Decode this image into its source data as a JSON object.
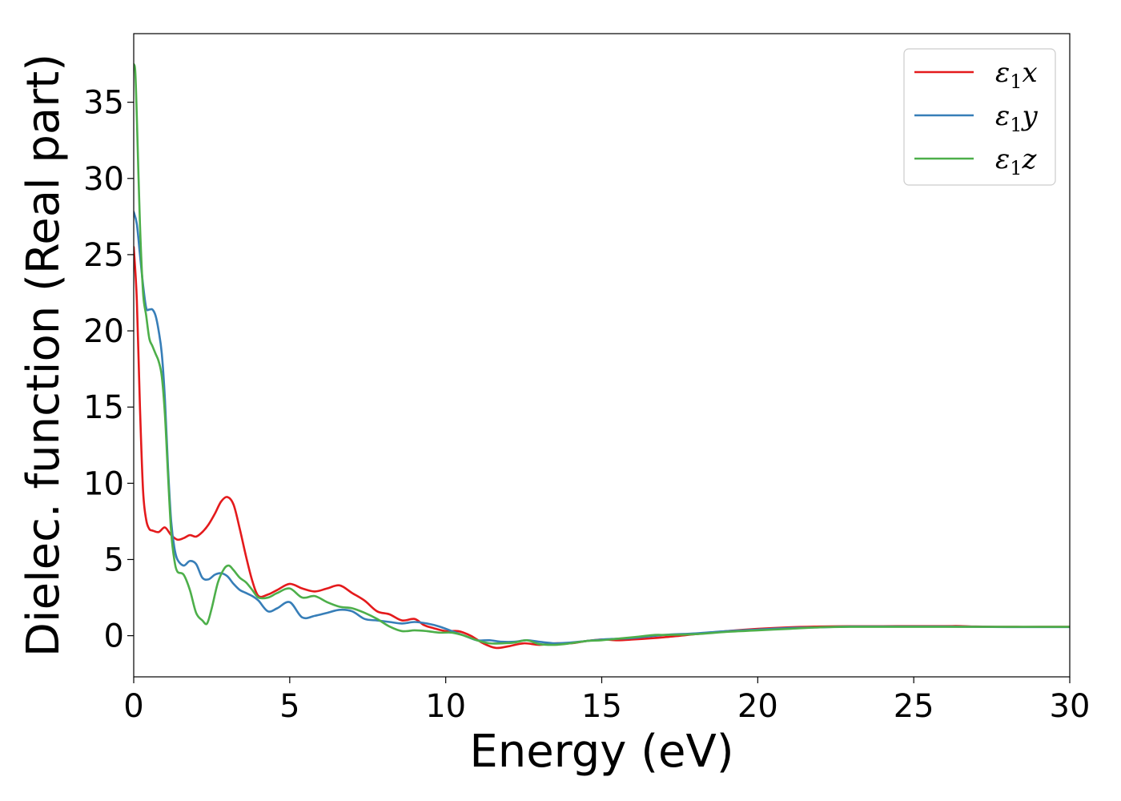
{
  "chart_data": {
    "type": "line",
    "title": "",
    "xlabel": "Energy (eV)",
    "ylabel": "Dielec. function (Real part)",
    "xlim": [
      0,
      30
    ],
    "ylim": [
      -2.7,
      39.5
    ],
    "xticks": [
      0,
      5,
      10,
      15,
      20,
      25,
      30
    ],
    "yticks": [
      0,
      5,
      10,
      15,
      20,
      25,
      30,
      35
    ],
    "grid": false,
    "legend_position": "top-right",
    "series": [
      {
        "name": "ε1x",
        "legend": {
          "base": "ε",
          "sub": "1",
          "suffix": "x"
        },
        "color": "#e41a1c",
        "x": [
          0,
          0.1,
          0.2,
          0.3,
          0.4,
          0.5,
          0.6,
          0.8,
          1.0,
          1.2,
          1.4,
          1.6,
          1.8,
          2.0,
          2.2,
          2.4,
          2.6,
          2.8,
          3.0,
          3.2,
          3.4,
          3.6,
          3.8,
          4.0,
          4.3,
          4.6,
          5.0,
          5.4,
          5.8,
          6.2,
          6.6,
          7.0,
          7.4,
          7.8,
          8.2,
          8.6,
          9.0,
          9.3,
          9.6,
          10.0,
          10.4,
          10.8,
          11.2,
          11.6,
          12.0,
          12.5,
          13.0,
          13.5,
          14.0,
          14.5,
          15.0,
          15.5,
          16.0,
          17.0,
          18.0,
          19.0,
          20.0,
          21.0,
          22.0,
          23.0,
          24.0,
          25.0,
          26.0,
          26.5,
          27.0,
          28.0,
          29.0,
          30.0
        ],
        "y": [
          25.5,
          22.0,
          15.0,
          9.5,
          7.6,
          7.0,
          6.9,
          6.8,
          7.1,
          6.6,
          6.3,
          6.4,
          6.6,
          6.5,
          6.8,
          7.3,
          8.0,
          8.8,
          9.1,
          8.6,
          7.0,
          5.2,
          3.6,
          2.6,
          2.7,
          3.0,
          3.4,
          3.1,
          2.9,
          3.1,
          3.3,
          2.8,
          2.3,
          1.6,
          1.4,
          1.0,
          1.1,
          0.7,
          0.5,
          0.3,
          0.3,
          0.0,
          -0.5,
          -0.8,
          -0.7,
          -0.5,
          -0.6,
          -0.5,
          -0.5,
          -0.35,
          -0.25,
          -0.3,
          -0.25,
          -0.1,
          0.1,
          0.3,
          0.45,
          0.55,
          0.6,
          0.62,
          0.62,
          0.63,
          0.63,
          0.63,
          0.6,
          0.58,
          0.58,
          0.58
        ]
      },
      {
        "name": "ε1y",
        "legend": {
          "base": "ε",
          "sub": "1",
          "suffix": "y"
        },
        "color": "#377eb8",
        "x": [
          0,
          0.1,
          0.2,
          0.3,
          0.4,
          0.5,
          0.6,
          0.7,
          0.8,
          0.9,
          1.0,
          1.1,
          1.2,
          1.3,
          1.4,
          1.6,
          1.8,
          2.0,
          2.2,
          2.4,
          2.6,
          2.8,
          3.0,
          3.2,
          3.4,
          3.6,
          3.8,
          4.0,
          4.3,
          4.6,
          5.0,
          5.4,
          5.8,
          6.2,
          6.6,
          7.0,
          7.4,
          7.8,
          8.2,
          8.6,
          9.0,
          9.4,
          9.8,
          10.2,
          10.6,
          11.0,
          11.4,
          11.8,
          12.2,
          12.6,
          13.0,
          13.5,
          14.0,
          14.5,
          15.0,
          15.5,
          16.0,
          17.0,
          18.0,
          19.0,
          20.0,
          21.0,
          22.0,
          23.0,
          24.0,
          25.0,
          26.0,
          27.0,
          28.0,
          29.0,
          30.0
        ],
        "y": [
          27.8,
          27.0,
          25.0,
          23.0,
          21.5,
          21.4,
          21.4,
          21.0,
          20.0,
          18.5,
          15.5,
          11.0,
          7.5,
          5.8,
          5.0,
          4.6,
          4.9,
          4.7,
          3.8,
          3.7,
          4.0,
          4.1,
          3.9,
          3.4,
          3.0,
          2.8,
          2.6,
          2.3,
          1.6,
          1.8,
          2.2,
          1.2,
          1.3,
          1.5,
          1.7,
          1.6,
          1.1,
          1.0,
          0.9,
          0.8,
          0.9,
          0.8,
          0.6,
          0.3,
          0.0,
          -0.3,
          -0.3,
          -0.4,
          -0.4,
          -0.3,
          -0.4,
          -0.5,
          -0.45,
          -0.35,
          -0.25,
          -0.2,
          -0.15,
          0.05,
          0.15,
          0.3,
          0.4,
          0.5,
          0.55,
          0.6,
          0.6,
          0.6,
          0.6,
          0.58,
          0.57,
          0.57,
          0.57
        ]
      },
      {
        "name": "ε1z",
        "legend": {
          "base": "ε",
          "sub": "1",
          "suffix": "z"
        },
        "color": "#4daf4a",
        "x": [
          0,
          0.05,
          0.1,
          0.2,
          0.3,
          0.4,
          0.5,
          0.6,
          0.7,
          0.8,
          0.9,
          1.0,
          1.1,
          1.2,
          1.3,
          1.4,
          1.6,
          1.8,
          2.0,
          2.2,
          2.35,
          2.5,
          2.7,
          2.9,
          3.05,
          3.2,
          3.4,
          3.6,
          3.8,
          4.0,
          4.3,
          4.6,
          5.0,
          5.4,
          5.8,
          6.2,
          6.6,
          7.0,
          7.4,
          7.8,
          8.2,
          8.6,
          9.0,
          9.4,
          9.8,
          10.2,
          10.6,
          11.0,
          11.4,
          11.8,
          12.2,
          12.6,
          13.0,
          13.5,
          14.0,
          14.5,
          15.0,
          15.5,
          16.0,
          16.7,
          17.0,
          18.0,
          19.0,
          20.0,
          21.0,
          22.0,
          23.0,
          24.0,
          25.0,
          26.0,
          27.0,
          28.0,
          29.0,
          30.0
        ],
        "y": [
          37.5,
          37.0,
          34.0,
          27.0,
          22.5,
          21.0,
          19.5,
          19.0,
          18.5,
          18.0,
          17.0,
          14.5,
          10.5,
          6.8,
          5.0,
          4.2,
          4.0,
          3.0,
          1.5,
          1.0,
          0.8,
          1.8,
          3.5,
          4.4,
          4.6,
          4.3,
          3.8,
          3.5,
          3.0,
          2.5,
          2.5,
          2.8,
          3.1,
          2.5,
          2.6,
          2.2,
          1.9,
          1.8,
          1.5,
          1.1,
          0.6,
          0.3,
          0.35,
          0.3,
          0.2,
          0.2,
          0.0,
          -0.3,
          -0.5,
          -0.5,
          -0.45,
          -0.3,
          -0.55,
          -0.6,
          -0.5,
          -0.35,
          -0.3,
          -0.2,
          -0.1,
          0.05,
          0.05,
          0.1,
          0.25,
          0.35,
          0.45,
          0.55,
          0.58,
          0.58,
          0.58,
          0.58,
          0.58,
          0.58,
          0.58,
          0.58
        ]
      }
    ]
  }
}
